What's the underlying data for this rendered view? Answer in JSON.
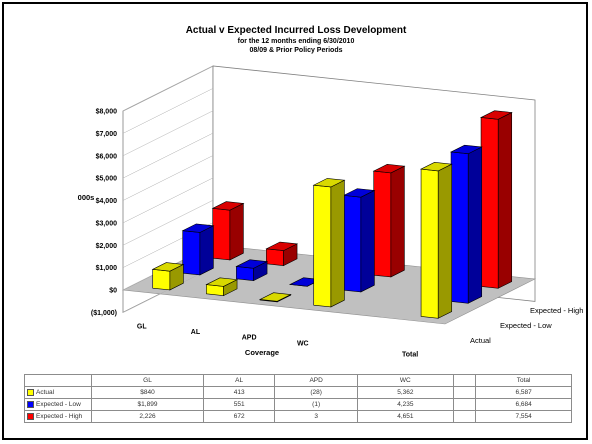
{
  "chart_data": {
    "type": "bar",
    "subtype": "3d-clustered-columns",
    "title": "Actual v Expected Incurred Loss Development",
    "subtitle_1": "for the 12 months ending 6/30/2010",
    "subtitle_2": "08/09 & Prior Policy Periods",
    "ylabel": "000s",
    "xlabel": "Coverage",
    "categories": [
      "GL",
      "AL",
      "APD",
      "WC",
      "",
      "Total"
    ],
    "y_ticks": [
      "$8,000",
      "$7,000",
      "$6,000",
      "$5,000",
      "$4,000",
      "$3,000",
      "$2,000",
      "$1,000",
      "$0",
      "($1,000)"
    ],
    "ylim": [
      -1000,
      8000
    ],
    "series": [
      {
        "name": "Actual",
        "color": "#ffff00",
        "values": [
          840,
          413,
          -28,
          5362,
          null,
          6587
        ]
      },
      {
        "name": "Expected - Low",
        "color": "#0000ff",
        "values": [
          1899,
          551,
          -1,
          4235,
          null,
          6684
        ]
      },
      {
        "name": "Expected - High",
        "color": "#ff0000",
        "values": [
          2226,
          672,
          3,
          4651,
          null,
          7554
        ]
      }
    ],
    "depth_axis_labels": [
      "Expected - High",
      "Expected - Low",
      "Actual"
    ],
    "table": {
      "header": [
        "GL",
        "AL",
        "APD",
        "WC",
        "",
        "Total"
      ],
      "rows": [
        {
          "label": "Actual",
          "color": "#ffff00",
          "cells": [
            "$840",
            "413",
            "(28)",
            "5,362",
            "",
            "6,587"
          ]
        },
        {
          "label": "Expected - Low",
          "color": "#0000ff",
          "cells": [
            "$1,899",
            "551",
            "(1)",
            "4,235",
            "",
            "6,684"
          ]
        },
        {
          "label": "Expected - High",
          "color": "#ff0000",
          "cells": [
            "2,226",
            "672",
            "3",
            "4,651",
            "",
            "7,554"
          ]
        }
      ]
    }
  }
}
